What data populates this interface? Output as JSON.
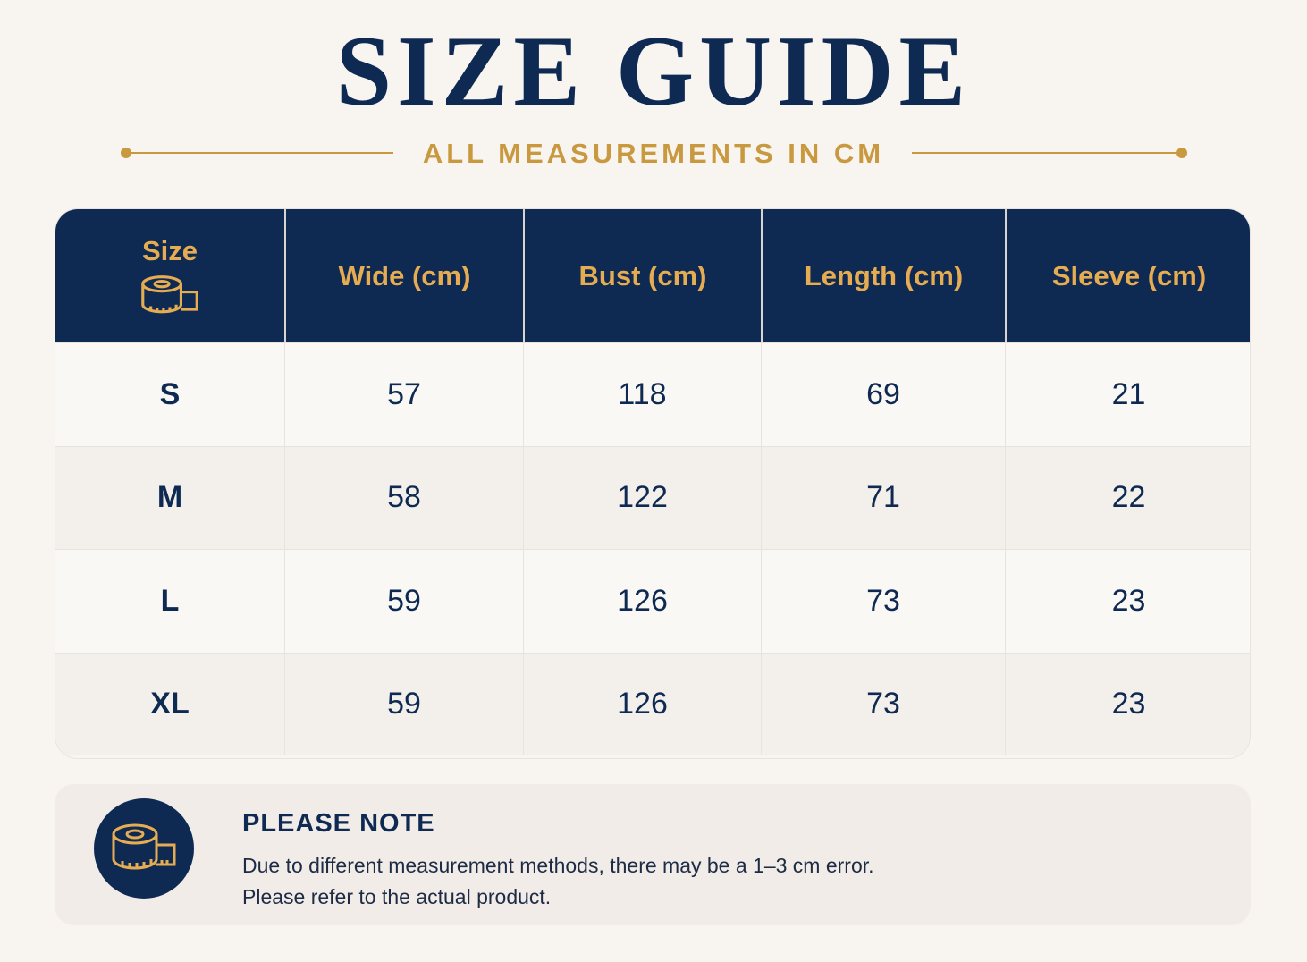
{
  "header": {
    "title": "SIZE GUIDE",
    "subtitle": "ALL MEASUREMENTS IN CM"
  },
  "table": {
    "columns": [
      "Size",
      "Wide (cm)",
      "Bust (cm)",
      "Length (cm)",
      "Sleeve (cm)"
    ],
    "rows": [
      [
        "S",
        57,
        118,
        69,
        21
      ],
      [
        "M",
        58,
        122,
        71,
        22
      ],
      [
        "L",
        59,
        126,
        73,
        23
      ],
      [
        "XL",
        59,
        126,
        73,
        23
      ]
    ]
  },
  "note": {
    "title": "PLEASE NOTE",
    "lines": [
      "Due to different measurement methods, there may be a 1–3 cm error.",
      "Please refer to the actual product."
    ]
  }
}
